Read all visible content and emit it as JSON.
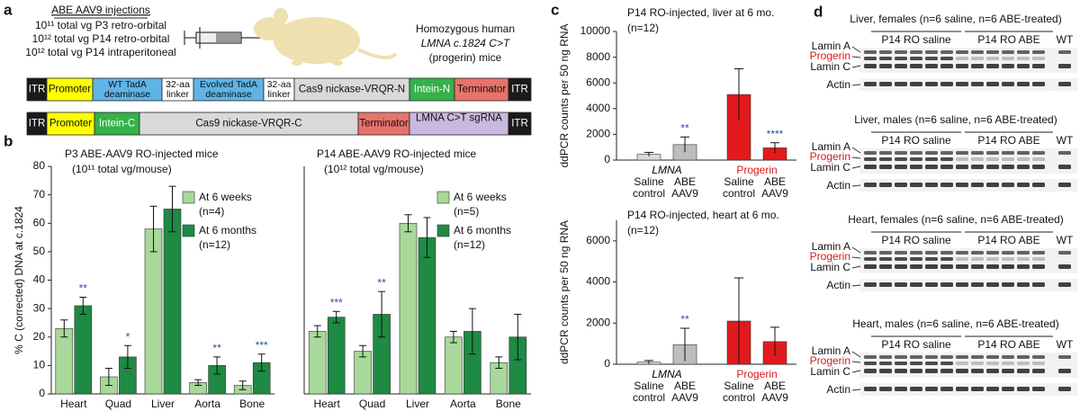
{
  "panel_labels": [
    "a",
    "b",
    "c",
    "d"
  ],
  "panel_a": {
    "injections_title": "ABE AAV9 injections",
    "injections": [
      "10¹¹ total vg P3 retro-orbital",
      "10¹² total vg P14 retro-orbital",
      "10¹² total vg P14 intraperitoneal"
    ],
    "mice": [
      "Homozygous human",
      "LMNA c.1824 C>T",
      "(progerin) mice"
    ],
    "constructs": [
      [
        {
          "label": [
            "ITR"
          ],
          "color": "#1a1a1a"
        },
        {
          "label": [
            "Promoter"
          ],
          "color": "#ffff00"
        },
        {
          "label": [
            "WT TadA",
            "deaminase"
          ],
          "color": "#5fb4e6"
        },
        {
          "label": [
            "32-aa",
            "linker"
          ],
          "color": "#ffffff"
        },
        {
          "label": [
            "Evolved TadA",
            "deaminase"
          ],
          "color": "#5fb4e6"
        },
        {
          "label": [
            "32-aa",
            "linker"
          ],
          "color": "#ffffff"
        },
        {
          "label": [
            "Cas9 nickase-VRQR-N"
          ],
          "color": "#d9d9d9"
        },
        {
          "label": [
            "Intein-N"
          ],
          "color": "#35b14a"
        },
        {
          "label": [
            "Terminator"
          ],
          "color": "#e8736a"
        },
        {
          "label": [
            "ITR"
          ],
          "color": "#1a1a1a"
        }
      ],
      [
        {
          "label": [
            "ITR"
          ],
          "color": "#1a1a1a"
        },
        {
          "label": [
            "Promoter"
          ],
          "color": "#ffff00"
        },
        {
          "label": [
            "Intein-C"
          ],
          "color": "#35b14a"
        },
        {
          "label": [
            "Cas9 nickase-VRQR-C"
          ],
          "color": "#d9d9d9"
        },
        {
          "label": [
            "Terminator"
          ],
          "color": "#e8736a"
        },
        {
          "label": [
            "LMNA C>T sgRNA"
          ],
          "color": "#c9b8e0"
        },
        {
          "label": [
            "ITR"
          ],
          "color": "#1a1a1a"
        }
      ]
    ]
  },
  "chart_data": [
    {
      "type": "grouped_bar",
      "title": "P3 ABE-AAV9 RO-injected mice",
      "subtitle": "(10¹¹ total vg/mouse)",
      "y_label": "% C (corrected) DNA at c.1824",
      "categories": [
        "Heart",
        "Quad",
        "Liver",
        "Aorta",
        "Bone"
      ],
      "series": [
        {
          "name": "At 6 weeks",
          "n": "(n=4)",
          "color": "#a8d89a",
          "values": [
            23,
            6,
            58,
            4,
            3
          ],
          "errors": [
            3,
            3,
            8,
            1,
            1.5
          ],
          "annotations": [
            null,
            null,
            null,
            null,
            null
          ]
        },
        {
          "name": "At 6 months",
          "n": "(n=12)",
          "color": "#1e8a44",
          "values": [
            31,
            13,
            65,
            10,
            11
          ],
          "errors": [
            3,
            4,
            8,
            3,
            3
          ],
          "annotations": [
            "**",
            "*",
            null,
            "**",
            "***"
          ]
        }
      ],
      "ylim": [
        0,
        80
      ],
      "yticks": [
        0,
        10,
        20,
        30,
        40,
        50,
        60,
        70,
        80
      ]
    },
    {
      "type": "grouped_bar",
      "title": "P14 ABE-AAV9 RO-injected mice",
      "subtitle": "(10¹² total vg/mouse)",
      "categories": [
        "Heart",
        "Quad",
        "Liver",
        "Aorta",
        "Bone"
      ],
      "series": [
        {
          "name": "At 6 weeks",
          "n": "(n=5)",
          "color": "#a8d89a",
          "values": [
            22,
            15,
            60,
            20,
            11
          ],
          "errors": [
            2,
            2,
            3,
            2,
            2
          ],
          "annotations": [
            null,
            null,
            null,
            null,
            null
          ]
        },
        {
          "name": "At 6 months",
          "n": "(n=12)",
          "color": "#1e8a44",
          "values": [
            27,
            28,
            55,
            22,
            20
          ],
          "errors": [
            2,
            8,
            7,
            8,
            8
          ],
          "annotations": [
            "***",
            "**",
            null,
            null,
            null
          ]
        }
      ],
      "ylim": [
        0,
        80
      ]
    },
    {
      "type": "bar",
      "title": "P14 RO-injected, liver at 6 mo.",
      "subtitle": "(n=12)",
      "y_label": "ddPCR counts per 50 ng RNA",
      "groups": [
        "LMNA",
        "Progerin"
      ],
      "group_colors": [
        "#000000",
        "#d7191c"
      ],
      "categories": [
        [
          "Saline",
          "control"
        ],
        [
          "ABE",
          "AAV9"
        ],
        [
          "Saline",
          "control"
        ],
        [
          "ABE",
          "AAV9"
        ]
      ],
      "values": [
        450,
        1200,
        5100,
        950
      ],
      "errors": [
        150,
        600,
        2000,
        400
      ],
      "annotations": [
        null,
        "**",
        null,
        "****"
      ],
      "colors": [
        "#d9d9d9",
        "#bdbdbd",
        "#e31a1c",
        "#e31a1c"
      ],
      "ylim": [
        0,
        10000
      ],
      "yticks": [
        0,
        2000,
        4000,
        6000,
        8000,
        10000
      ]
    },
    {
      "type": "bar",
      "title": "P14 RO-injected, heart at 6 mo.",
      "subtitle": "(n=12)",
      "y_label": "ddPCR counts per 50 ng RNA",
      "groups": [
        "LMNA",
        "Progerin"
      ],
      "group_colors": [
        "#000000",
        "#d7191c"
      ],
      "categories": [
        [
          "Saline",
          "control"
        ],
        [
          "ABE",
          "AAV9"
        ],
        [
          "Saline",
          "control"
        ],
        [
          "ABE",
          "AAV9"
        ]
      ],
      "values": [
        100,
        950,
        2100,
        1100
      ],
      "errors": [
        80,
        800,
        2100,
        700
      ],
      "annotations": [
        null,
        "**",
        null,
        null
      ],
      "colors": [
        "#d9d9d9",
        "#bdbdbd",
        "#e31a1c",
        "#e31a1c"
      ],
      "ylim": [
        0,
        7000
      ],
      "yticks": [
        0,
        2000,
        4000,
        6000
      ]
    }
  ],
  "panel_d": {
    "blots": [
      {
        "title": "Liver, females (n=6 saline, n=6 ABE-treated)",
        "groups": [
          "P14 RO saline",
          "P14 RO ABE",
          "WT"
        ],
        "bands": [
          "Lamin A",
          "Progerin",
          "Lamin C",
          "Actin"
        ]
      },
      {
        "title": "Liver, males (n=6 saline, n=6 ABE-treated)",
        "groups": [
          "P14 RO saline",
          "P14 RO ABE",
          "WT"
        ],
        "bands": [
          "Lamin A",
          "Progerin",
          "Lamin C",
          "Actin"
        ]
      },
      {
        "title": "Heart, females (n=6 saline, n=6 ABE-treated)",
        "groups": [
          "P14 RO saline",
          "P14 RO ABE",
          "WT"
        ],
        "bands": [
          "Lamin A",
          "Progerin",
          "Lamin C",
          "Actin"
        ]
      },
      {
        "title": "Heart, males (n=6 saline, n=6 ABE-treated)",
        "groups": [
          "P14 RO saline",
          "P14 RO ABE",
          "WT"
        ],
        "bands": [
          "Lamin A",
          "Progerin",
          "Lamin C",
          "Actin"
        ]
      }
    ]
  }
}
